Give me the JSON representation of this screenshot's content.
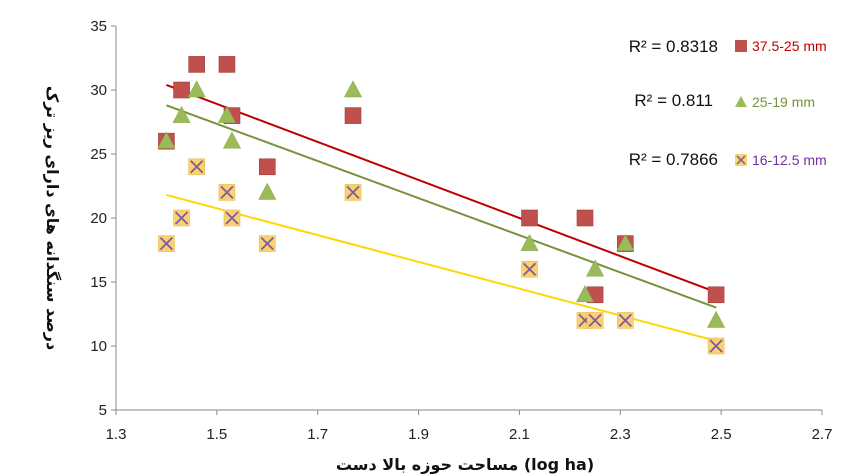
{
  "chart_data": {
    "type": "scatter",
    "title": "",
    "xlabel": "(log ha) مساحت حوزه بالا دست",
    "ylabel": "درصد سنگدانه های دارای ریز ترک",
    "xlim": [
      1.3,
      2.7
    ],
    "ylim": [
      5,
      35
    ],
    "xticks": [
      "1.3",
      "1.5",
      "1.7",
      "1.9",
      "2.1",
      "2.3",
      "2.5",
      "2.7"
    ],
    "yticks": [
      "5",
      "10",
      "15",
      "20",
      "25",
      "30",
      "35"
    ],
    "grid": false,
    "legend_position": "right",
    "series": [
      {
        "name": "37.5-25 mm",
        "marker": "square",
        "color": "#c0504d",
        "line_color": "#c00000",
        "r2": "R² = 0.8318",
        "trend": [
          [
            1.4,
            30.4
          ],
          [
            2.49,
            14.2
          ]
        ],
        "points": [
          [
            1.4,
            26
          ],
          [
            1.43,
            30
          ],
          [
            1.46,
            32
          ],
          [
            1.52,
            32
          ],
          [
            1.53,
            28
          ],
          [
            1.6,
            24
          ],
          [
            1.77,
            28
          ],
          [
            2.12,
            20
          ],
          [
            2.23,
            20
          ],
          [
            2.25,
            14
          ],
          [
            2.31,
            18
          ],
          [
            2.49,
            14
          ]
        ]
      },
      {
        "name": "25-19 mm",
        "marker": "triangle",
        "color": "#9bbb59",
        "line_color": "#76923c",
        "r2": "R² = 0.811",
        "trend": [
          [
            1.4,
            28.8
          ],
          [
            2.49,
            13.0
          ]
        ],
        "points": [
          [
            1.4,
            26
          ],
          [
            1.43,
            28
          ],
          [
            1.46,
            30
          ],
          [
            1.52,
            28
          ],
          [
            1.53,
            26
          ],
          [
            1.6,
            22
          ],
          [
            1.77,
            30
          ],
          [
            2.12,
            18
          ],
          [
            2.23,
            14
          ],
          [
            2.25,
            16
          ],
          [
            2.31,
            18
          ],
          [
            2.49,
            12
          ]
        ]
      },
      {
        "name": "16-12.5 mm",
        "marker": "x-square",
        "color": "#f9d16f",
        "line_color": "#ffd700",
        "r2": "R² = 0.7866",
        "trend": [
          [
            1.4,
            21.8
          ],
          [
            2.49,
            10.4
          ]
        ],
        "points": [
          [
            1.4,
            18
          ],
          [
            1.43,
            20
          ],
          [
            1.46,
            24
          ],
          [
            1.52,
            22
          ],
          [
            1.53,
            20
          ],
          [
            1.6,
            18
          ],
          [
            1.77,
            22
          ],
          [
            2.12,
            16
          ],
          [
            2.23,
            12
          ],
          [
            2.25,
            12
          ],
          [
            2.31,
            12
          ],
          [
            2.49,
            10
          ]
        ]
      }
    ],
    "legend_text_colors": [
      "#c00000",
      "#76923c",
      "#7030a0"
    ]
  }
}
